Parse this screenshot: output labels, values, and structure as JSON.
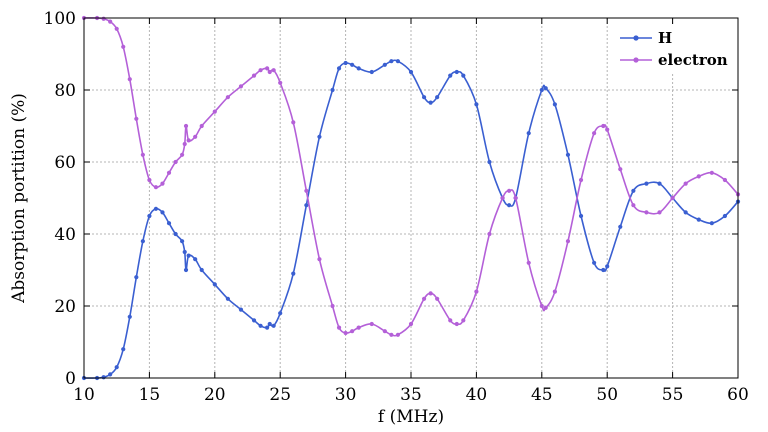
{
  "chart_data": {
    "type": "line",
    "xlabel": "f (MHz)",
    "ylabel": "Absorption portition (%)",
    "xlim": [
      10,
      60
    ],
    "ylim": [
      0,
      100
    ],
    "xticks": [
      10,
      15,
      20,
      25,
      30,
      35,
      40,
      45,
      50,
      55,
      60
    ],
    "yticks": [
      0,
      20,
      40,
      60,
      80,
      100
    ],
    "grid": true,
    "legend_position": "top-right",
    "series": [
      {
        "name": "H",
        "color": "#3a5fd1",
        "marker": "dot",
        "x": [
          10,
          11,
          11.5,
          12,
          12.5,
          13,
          13.5,
          14,
          14.5,
          15,
          15.5,
          16,
          16.5,
          17,
          17.5,
          17.7,
          17.8,
          18,
          18.5,
          19,
          20,
          21,
          22,
          23,
          23.5,
          24,
          24.2,
          24.5,
          25,
          26,
          27,
          28,
          29,
          29.5,
          30,
          30.5,
          31,
          32,
          33,
          33.5,
          34,
          35,
          36,
          36.5,
          37,
          38,
          38.5,
          39,
          40,
          41,
          42,
          42.5,
          43,
          44,
          45,
          45.3,
          46,
          47,
          48,
          49,
          49.7,
          50,
          51,
          52,
          53,
          54,
          55,
          56,
          57,
          58,
          59,
          60
        ],
        "y": [
          0,
          0,
          0.2,
          1,
          3,
          8,
          17,
          28,
          38,
          45,
          47,
          46,
          43,
          40,
          38,
          35,
          30,
          34,
          33,
          30,
          26,
          22,
          19,
          16,
          14.5,
          14,
          15,
          14.5,
          18,
          29,
          48,
          67,
          80,
          86,
          87.5,
          87,
          86,
          85,
          87,
          88,
          88,
          85,
          78,
          76.5,
          78,
          84,
          85,
          84,
          76,
          60,
          50,
          48,
          50,
          68,
          80,
          80.5,
          76,
          62,
          45,
          32,
          30,
          31,
          42,
          52,
          54,
          54,
          50,
          46,
          44,
          43,
          45,
          49
        ]
      },
      {
        "name": "electron",
        "color": "#b460d8",
        "marker": "dot",
        "x": [
          10,
          11,
          11.5,
          12,
          12.5,
          13,
          13.5,
          14,
          14.5,
          15,
          15.5,
          16,
          16.5,
          17,
          17.5,
          17.7,
          17.8,
          18,
          18.5,
          19,
          20,
          21,
          22,
          23,
          23.5,
          24,
          24.2,
          24.5,
          25,
          26,
          27,
          28,
          29,
          29.5,
          30,
          30.5,
          31,
          32,
          33,
          33.5,
          34,
          35,
          36,
          36.5,
          37,
          38,
          38.5,
          39,
          40,
          41,
          42,
          42.5,
          43,
          44,
          45,
          45.3,
          46,
          47,
          48,
          49,
          49.7,
          50,
          51,
          52,
          53,
          54,
          55,
          56,
          57,
          58,
          59,
          60
        ],
        "y": [
          100,
          100,
          99.8,
          99,
          97,
          92,
          83,
          72,
          62,
          55,
          53,
          54,
          57,
          60,
          62,
          65,
          70,
          66,
          67,
          70,
          74,
          78,
          81,
          84,
          85.5,
          86,
          85,
          85.5,
          82,
          71,
          52,
          33,
          20,
          14,
          12.5,
          13,
          14,
          15,
          13,
          12,
          12,
          15,
          22,
          23.5,
          22,
          16,
          15,
          16,
          24,
          40,
          50,
          52,
          50,
          32,
          20,
          19.5,
          24,
          38,
          55,
          68,
          70,
          69,
          58,
          48,
          46,
          46,
          50,
          54,
          56,
          57,
          55,
          51
        ]
      }
    ]
  }
}
